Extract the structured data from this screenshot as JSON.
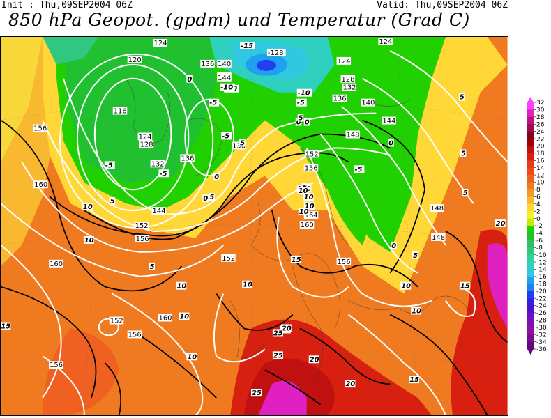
{
  "header": {
    "init": "Init : Thu,09SEP2004 06Z",
    "valid": "Valid: Thu,09SEP2004 06Z",
    "title": "850 hPa Geopot. (gpdm) und Temperatur (Grad C)"
  },
  "legend": {
    "ticks": [
      "32",
      "30",
      "28",
      "26",
      "24",
      "22",
      "20",
      "18",
      "16",
      "14",
      "12",
      "10",
      "8",
      "6",
      "4",
      "2",
      "0",
      "-2",
      "-4",
      "-6",
      "-8",
      "-10",
      "-12",
      "-14",
      "-16",
      "-18",
      "-20",
      "-22",
      "-24",
      "-26",
      "-28",
      "-30",
      "-32",
      "-34",
      "-36"
    ],
    "colors": [
      "#ff40ff",
      "#e020c0",
      "#c01080",
      "#a00850",
      "#800020",
      "#a00000",
      "#c01010",
      "#d82010",
      "#e83818",
      "#f04a18",
      "#f06020",
      "#f07a20",
      "#f09828",
      "#f8b830",
      "#ffd838",
      "#f8f020",
      "#c0f000",
      "#20d000",
      "#20c030",
      "#30c060",
      "#30c880",
      "#30d0a0",
      "#30d0c0",
      "#30c8e0",
      "#20a0f0",
      "#2080f0",
      "#2040f0",
      "#3020e0",
      "#5010d0",
      "#7010c0",
      "#8010b0",
      "#9010a0",
      "#800890",
      "#600878"
    ]
  },
  "geopotential_labels": [
    "124",
    "120",
    "116",
    "124",
    "128",
    "132",
    "140",
    "144",
    "136",
    "140",
    "136",
    "136",
    "-128",
    "124",
    "124",
    "128",
    "132",
    "136",
    "140",
    "144",
    "148",
    "152",
    "156",
    "160",
    "164",
    "156",
    "160",
    "152",
    "156",
    "160",
    "152",
    "156",
    "152",
    "156",
    "160",
    "160",
    "156",
    "144",
    "148",
    "148"
  ],
  "temperature_labels": [
    "-15",
    "-10",
    "-10",
    "-5",
    "-5",
    "-5",
    "-5",
    "-5",
    "-10",
    "-5",
    "0",
    "0",
    "0",
    "0",
    "0",
    "0",
    "0",
    "5",
    "5",
    "5",
    "5",
    "5",
    "5",
    "5",
    "5",
    "5",
    "5",
    "10",
    "10",
    "10",
    "10",
    "10",
    "10",
    "10",
    "10",
    "10",
    "10",
    "10",
    "10",
    "15",
    "15",
    "15",
    "15",
    "15",
    "20",
    "20",
    "20",
    "20",
    "25",
    "25",
    "25"
  ]
}
